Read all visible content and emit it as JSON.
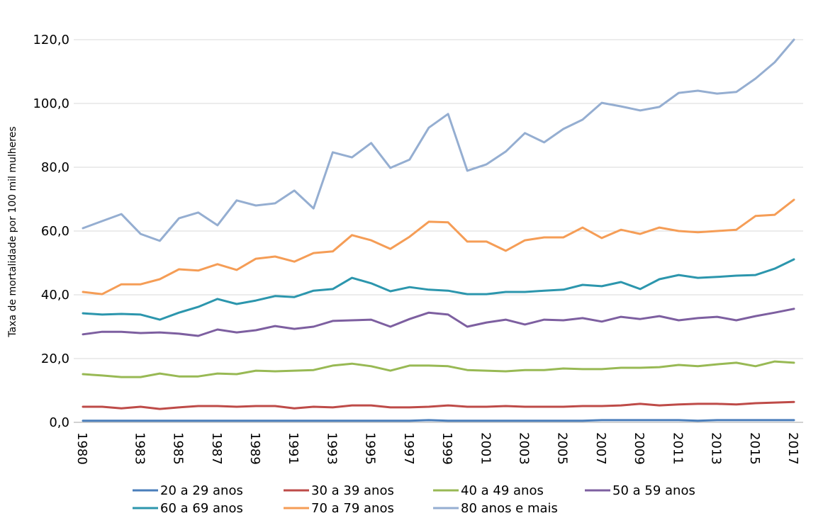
{
  "chart_data": {
    "type": "line",
    "ylabel": "Taxa de mortalidade por 100 mil mulheres",
    "xlabel": "",
    "ylim": [
      0,
      120
    ],
    "yticks": [
      0,
      20,
      40,
      60,
      80,
      100,
      120
    ],
    "ytick_labels": [
      "0,0",
      "20,0",
      "40,0",
      "60,0",
      "80,0",
      "100,0",
      "120,0"
    ],
    "x": [
      1980,
      1981,
      1982,
      1983,
      1984,
      1985,
      1986,
      1987,
      1988,
      1989,
      1990,
      1991,
      1992,
      1993,
      1994,
      1995,
      1996,
      1997,
      1998,
      1999,
      2000,
      2001,
      2002,
      2003,
      2004,
      2005,
      2006,
      2007,
      2008,
      2009,
      2010,
      2011,
      2012,
      2013,
      2014,
      2015,
      2016,
      2017
    ],
    "xtick_labels": [
      "1980",
      "1983",
      "1985",
      "1987",
      "1989",
      "1991",
      "1993",
      "1995",
      "1997",
      "1999",
      "2001",
      "2003",
      "2005",
      "2007",
      "2009",
      "2011",
      "2013",
      "2015",
      "2017"
    ],
    "grid": "horizontal",
    "legend_position": "bottom",
    "series": [
      {
        "name": "20 a 29 anos",
        "color": "#4a7ebb",
        "values": [
          0.5,
          0.5,
          0.5,
          0.5,
          0.5,
          0.5,
          0.5,
          0.5,
          0.5,
          0.5,
          0.5,
          0.5,
          0.5,
          0.5,
          0.5,
          0.5,
          0.5,
          0.5,
          0.7,
          0.5,
          0.5,
          0.5,
          0.5,
          0.5,
          0.5,
          0.5,
          0.5,
          0.7,
          0.7,
          0.7,
          0.7,
          0.7,
          0.5,
          0.7,
          0.7,
          0.7,
          0.7,
          0.7
        ]
      },
      {
        "name": "30 a 39 anos",
        "color": "#be4b48",
        "values": [
          4.9,
          4.9,
          4.4,
          4.9,
          4.2,
          4.7,
          5.1,
          5.1,
          4.9,
          5.1,
          5.1,
          4.4,
          4.9,
          4.7,
          5.3,
          5.3,
          4.7,
          4.7,
          4.9,
          5.3,
          4.9,
          4.9,
          5.1,
          4.9,
          4.9,
          4.9,
          5.1,
          5.1,
          5.3,
          5.8,
          5.3,
          5.6,
          5.8,
          5.8,
          5.6,
          6.0,
          6.2,
          6.4
        ]
      },
      {
        "name": "40 a 49 anos",
        "color": "#98b954",
        "values": [
          15.1,
          14.7,
          14.2,
          14.2,
          15.3,
          14.4,
          14.4,
          15.3,
          15.1,
          16.2,
          16.0,
          16.2,
          16.4,
          17.8,
          18.4,
          17.6,
          16.2,
          17.8,
          17.8,
          17.6,
          16.4,
          16.2,
          16.0,
          16.4,
          16.4,
          16.9,
          16.7,
          16.7,
          17.1,
          17.1,
          17.3,
          18.0,
          17.6,
          18.2,
          18.7,
          17.6,
          19.1,
          18.7
        ]
      },
      {
        "name": "50 a 59 anos",
        "color": "#7d5fa0",
        "values": [
          27.6,
          28.4,
          28.4,
          28.0,
          28.2,
          27.8,
          27.1,
          29.1,
          28.2,
          28.9,
          30.2,
          29.3,
          30.0,
          31.8,
          32.0,
          32.2,
          30.0,
          32.4,
          34.4,
          33.8,
          30.0,
          31.3,
          32.2,
          30.7,
          32.2,
          32.0,
          32.7,
          31.6,
          33.1,
          32.4,
          33.3,
          32.0,
          32.7,
          33.1,
          32.0,
          33.3,
          34.4,
          35.6
        ]
      },
      {
        "name": "60 a 69 anos",
        "color": "#2c96ad",
        "values": [
          34.2,
          33.8,
          34.0,
          33.8,
          32.2,
          34.4,
          36.2,
          38.7,
          37.1,
          38.2,
          39.6,
          39.3,
          41.3,
          41.8,
          45.3,
          43.6,
          41.1,
          42.4,
          41.6,
          41.3,
          40.2,
          40.2,
          40.9,
          40.9,
          41.3,
          41.6,
          43.1,
          42.7,
          44.0,
          41.8,
          44.9,
          46.2,
          45.3,
          45.6,
          46.0,
          46.2,
          48.2,
          51.1
        ]
      },
      {
        "name": "70 a 79 anos",
        "color": "#f59d56",
        "values": [
          40.9,
          40.2,
          43.3,
          43.3,
          44.9,
          48.0,
          47.6,
          49.6,
          47.8,
          51.3,
          52.0,
          50.4,
          53.1,
          53.6,
          58.7,
          57.1,
          54.4,
          58.2,
          62.9,
          62.7,
          56.7,
          56.7,
          53.8,
          57.1,
          58.0,
          58.0,
          61.1,
          57.8,
          60.4,
          59.1,
          61.1,
          60.0,
          59.6,
          60.0,
          60.4,
          64.7,
          65.1,
          69.8
        ]
      },
      {
        "name": "80 anos e mais",
        "color": "#95aed1",
        "values": [
          60.9,
          63.1,
          65.3,
          59.1,
          56.9,
          64.0,
          65.8,
          61.8,
          69.6,
          68.0,
          68.7,
          72.7,
          67.1,
          84.7,
          83.1,
          87.6,
          79.8,
          82.4,
          92.4,
          96.7,
          78.9,
          80.9,
          84.9,
          90.7,
          87.8,
          92.0,
          94.9,
          100.2,
          99.1,
          97.8,
          98.9,
          103.3,
          104.0,
          103.1,
          103.6,
          107.8,
          112.9,
          120.0
        ]
      }
    ]
  }
}
